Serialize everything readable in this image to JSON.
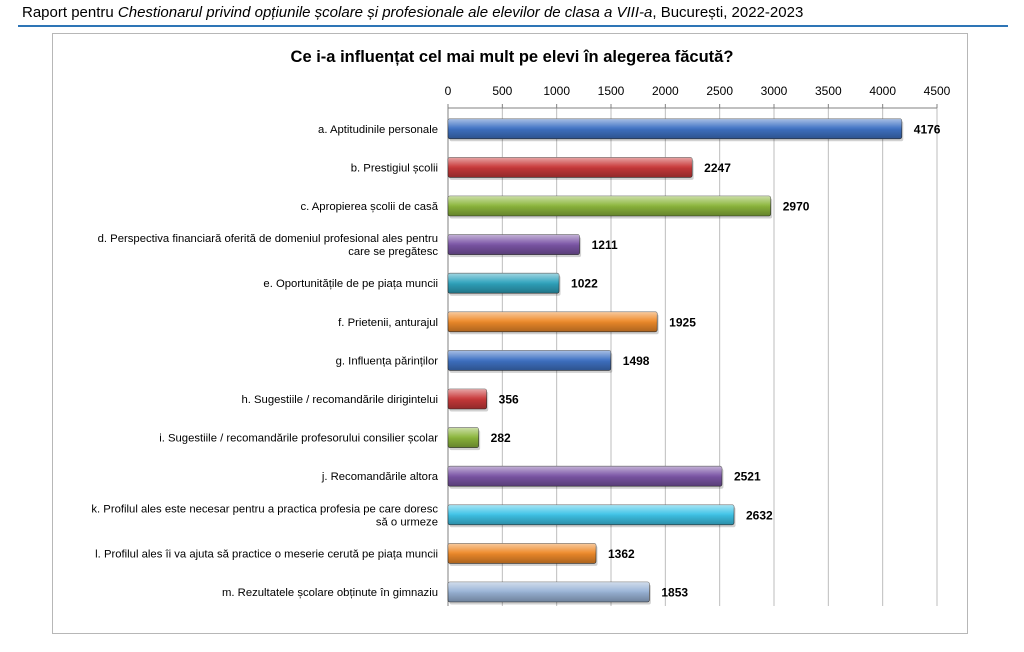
{
  "header": {
    "prefix": "Raport pentru ",
    "italic": "Chestionarul privind opțiunile școlare și profesionale ale elevilor de clasa a VIII-a",
    "suffix": ", București, 2022-2023"
  },
  "colors": {
    "blue": "#3f72c4",
    "red": "#c9393a",
    "green": "#8cb63c",
    "purple": "#7b55a6",
    "teal": "#2fa3bd",
    "orange": "#ee8a2a",
    "cyan": "#3ec4e8",
    "lightblue": "#99b3d6"
  },
  "chart_data": {
    "type": "bar",
    "orientation": "horizontal",
    "title": "Ce i-a influențat cel mai mult pe elevi în alegerea făcută?",
    "xlabel": "",
    "ylabel": "",
    "xlim": [
      0,
      4500
    ],
    "ticks": [
      0,
      500,
      1000,
      1500,
      2000,
      2500,
      3000,
      3500,
      4000,
      4500
    ],
    "grid": true,
    "legend": "none",
    "categories": [
      [
        "a. Aptitudinile personale"
      ],
      [
        "b. Prestigiul școlii"
      ],
      [
        "c. Apropierea școlii de casă"
      ],
      [
        "d. Perspectiva financiară oferită de domeniul profesional ales pentru",
        "care se pregătesc"
      ],
      [
        "e. Oportunitățile de pe piața muncii"
      ],
      [
        "f. Prietenii, anturajul"
      ],
      [
        "g. Influența părinților"
      ],
      [
        "h. Sugestiile / recomandările dirigintelui"
      ],
      [
        "i. Sugestiile / recomandările profesorului consilier școlar"
      ],
      [
        "j. Recomandările altora"
      ],
      [
        "k. Profilul ales este necesar pentru a practica profesia pe care doresc",
        "să o urmeze"
      ],
      [
        "l. Profilul ales îi va ajuta să practice o meserie cerută pe piața muncii"
      ],
      [
        "m. Rezultatele școlare obținute în gimnaziu"
      ]
    ],
    "values": [
      4176,
      2247,
      2970,
      1211,
      1022,
      1925,
      1498,
      356,
      282,
      2521,
      2632,
      1362,
      1853
    ],
    "bar_colors": [
      "blue",
      "red",
      "green",
      "purple",
      "teal",
      "orange",
      "blue",
      "red",
      "green",
      "purple",
      "cyan",
      "orange",
      "lightblue"
    ]
  }
}
